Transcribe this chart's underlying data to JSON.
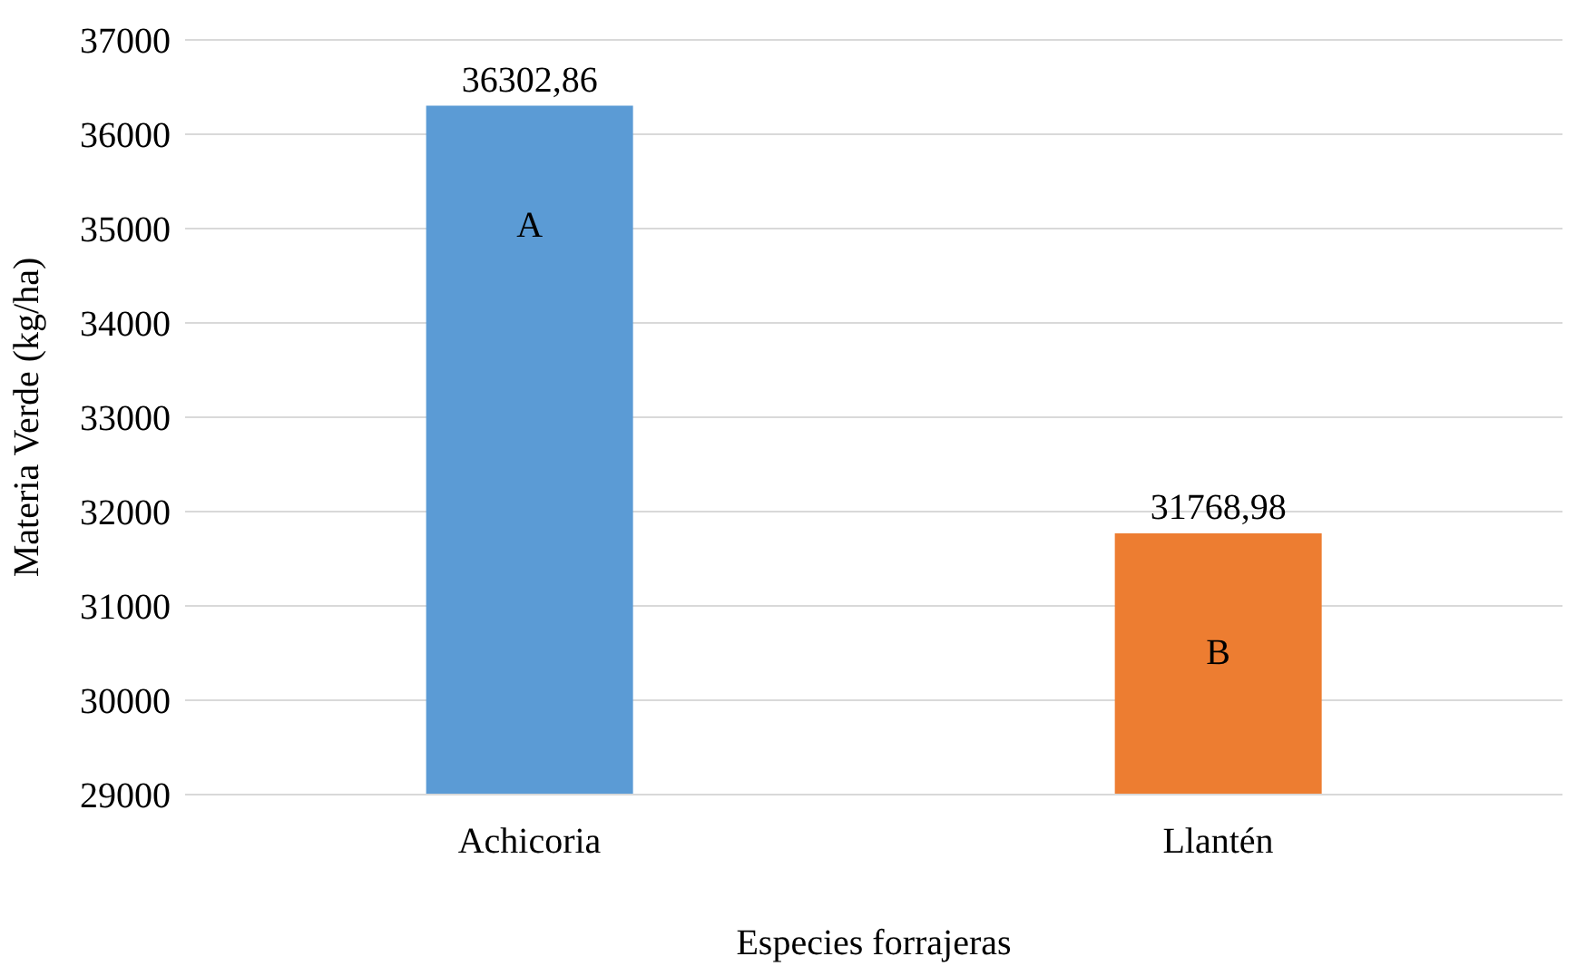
{
  "chart_data": {
    "type": "bar",
    "xlabel": "Especies forrajeras",
    "ylabel": "Materia Verde (kg/ha)",
    "categories": [
      "Achicoria",
      "Llantén"
    ],
    "values": [
      36302.86,
      31768.98
    ],
    "value_labels": [
      "36302,86",
      "31768,98"
    ],
    "colors": [
      "#5b9bd5",
      "#ed7d31"
    ],
    "ylim": [
      29000,
      37000
    ],
    "yticks": [
      29000,
      30000,
      31000,
      32000,
      33000,
      34000,
      35000,
      36000,
      37000
    ],
    "grid": "y",
    "annotations": [
      "A",
      "B"
    ]
  }
}
